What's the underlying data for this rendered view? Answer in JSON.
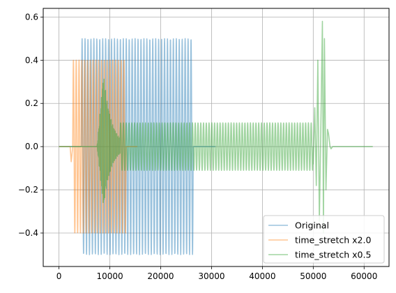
{
  "chart_data": {
    "type": "line",
    "title": "",
    "xlabel": "",
    "ylabel": "",
    "xlim": [
      -3100,
      64900
    ],
    "ylim": [
      -0.555,
      0.64
    ],
    "xticks": [
      0,
      10000,
      20000,
      30000,
      40000,
      50000,
      60000
    ],
    "xtick_labels": [
      "0",
      "10000",
      "20000",
      "30000",
      "40000",
      "50000",
      "60000"
    ],
    "yticks": [
      -0.4,
      -0.2,
      0.0,
      0.2,
      0.4,
      0.6
    ],
    "ytick_labels": [
      "−0.4",
      "−0.2",
      "0.0",
      "0.2",
      "0.4",
      "0.6"
    ],
    "grid": true,
    "legend_placement": "lower right",
    "series": [
      {
        "name": "Original",
        "color": "#1f77b4",
        "points": [
          [
            0,
            0
          ],
          [
            4400,
            0
          ],
          [
            4400,
            0.5
          ],
          [
            26400,
            0.5
          ],
          [
            26400,
            -0.5
          ],
          [
            4400,
            -0.5
          ],
          [
            26400,
            0
          ],
          [
            30800,
            0
          ]
        ],
        "tone": {
          "x_start": 4400,
          "x_end": 26400,
          "amplitude": 0.5,
          "cycles": 38
        }
      },
      {
        "name": "time_stretch x2.0",
        "color": "#ff7f0e",
        "segments": [
          {
            "x_start": 0,
            "x_end": 2200,
            "y": 0
          },
          {
            "x_start": 2200,
            "x_end": 13200,
            "amplitude": 0.4,
            "cycles": 19
          },
          {
            "x_start": 13200,
            "x_end": 15400,
            "y": 0
          }
        ],
        "extremes": {
          "min": -0.4,
          "max": 0.4,
          "transient_min": -0.07
        }
      },
      {
        "name": "time_stretch x0.5",
        "color": "#2ca02c",
        "segments": [
          {
            "x_start": 0,
            "x_end": 7500,
            "y": 0
          },
          {
            "x_start": 7500,
            "x_end": 12000,
            "note": "onset transient",
            "max": 0.34,
            "min": -0.28
          },
          {
            "x_start": 12000,
            "x_end": 50000,
            "amplitude": 0.11,
            "cycles": 70
          },
          {
            "x_start": 50000,
            "x_end": 53500,
            "note": "offset transient",
            "max": 0.58,
            "min": -0.4
          },
          {
            "x_start": 53500,
            "x_end": 61700,
            "y": 0
          }
        ],
        "extremes": {
          "min": -0.4,
          "max": 0.58
        }
      }
    ]
  }
}
